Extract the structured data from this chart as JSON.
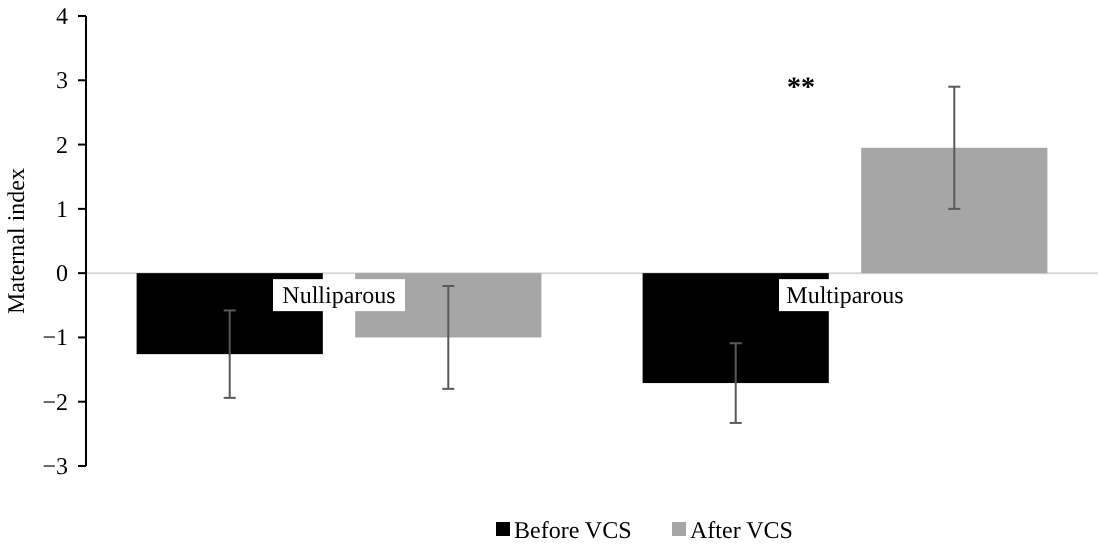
{
  "chart_data": {
    "type": "bar",
    "ylabel": "Maternal index",
    "categories": [
      "Nulliparous",
      "Multiparous"
    ],
    "series": [
      {
        "name": "Before VCS",
        "color": "#000000",
        "values": [
          -1.26,
          -1.71
        ],
        "errors": [
          0.68,
          0.62
        ]
      },
      {
        "name": "After VCS",
        "color": "#a6a6a6",
        "values": [
          -1.0,
          1.95
        ],
        "errors": [
          0.8,
          0.95
        ]
      }
    ],
    "ylim": [
      -3,
      4
    ],
    "yticks": [
      -3,
      -2,
      -1,
      0,
      1,
      2,
      3,
      4
    ],
    "grid": false,
    "legend": "bottom",
    "annotations": [
      "**"
    ]
  }
}
